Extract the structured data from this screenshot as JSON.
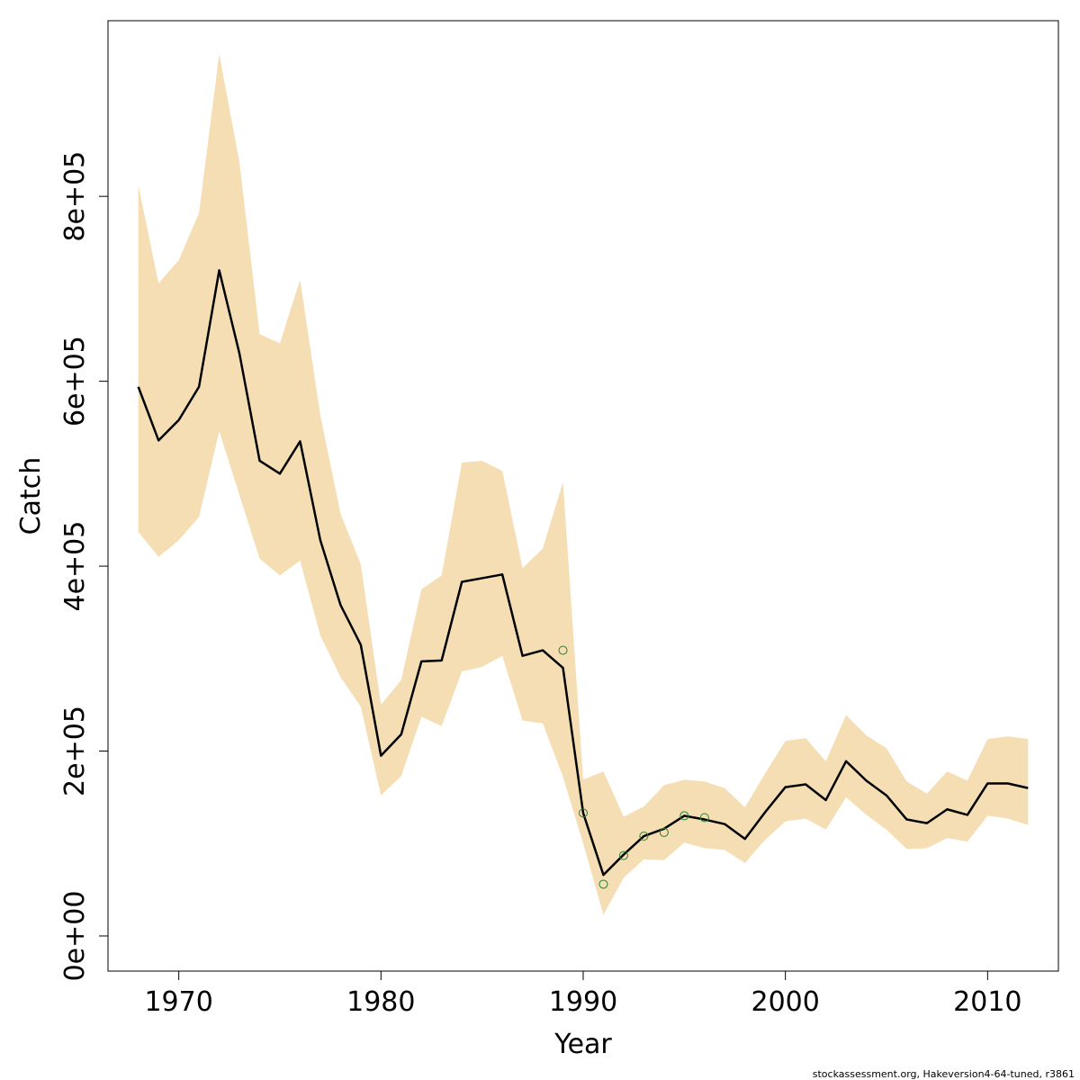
{
  "footer": "stockassessment.org, Hakeversion4-64-tuned, r3861",
  "chart_data": {
    "type": "line",
    "title": "",
    "xlabel": "Year",
    "ylabel": "Catch",
    "xlim": [
      1966.5,
      2013.5
    ],
    "ylim": [
      -38000,
      990000
    ],
    "x_ticks": [
      1970,
      1980,
      1990,
      2000,
      2010
    ],
    "x_tick_labels": [
      "1970",
      "1980",
      "1990",
      "2000",
      "2010"
    ],
    "y_ticks": [
      0,
      200000,
      400000,
      600000,
      800000
    ],
    "y_tick_labels": [
      "0e+00",
      "2e+05",
      "4e+05",
      "6e+05",
      "8e+05"
    ],
    "band_color": "#f5deb3",
    "line_color": "#000000",
    "point_color": "#2e7d32",
    "grid": false,
    "legend": "none",
    "series": [
      {
        "type": "line",
        "x": [
          1968,
          1969,
          1970,
          1971,
          1972,
          1973,
          1974,
          1975,
          1976,
          1977,
          1978,
          1979,
          1980,
          1981,
          1982,
          1983,
          1984,
          1985,
          1986,
          1987,
          1988,
          1989,
          1990,
          1991,
          1992,
          1993,
          1994,
          1995,
          1996,
          1997,
          1998,
          1999,
          2000,
          2001,
          2002,
          2003,
          2004,
          2005,
          2006,
          2007,
          2008,
          2009,
          2010,
          2011,
          2012
        ],
        "values": [
          594000,
          536000,
          558000,
          594000,
          720000,
          630000,
          514000,
          500000,
          535000,
          428000,
          358000,
          315000,
          195000,
          218000,
          297000,
          298000,
          383000,
          387000,
          391000,
          303000,
          309000,
          290000,
          133000,
          66000,
          88000,
          108000,
          116000,
          130000,
          126000,
          121000,
          105000,
          134000,
          161000,
          164000,
          147000,
          189000,
          168000,
          152000,
          126000,
          122000,
          137000,
          131000,
          165000,
          165000,
          160000
        ]
      },
      {
        "type": "band",
        "x": [
          1968,
          1969,
          1970,
          1971,
          1972,
          1973,
          1974,
          1975,
          1976,
          1977,
          1978,
          1979,
          1980,
          1981,
          1982,
          1983,
          1984,
          1985,
          1986,
          1987,
          1988,
          1989,
          1990,
          1991,
          1992,
          1993,
          1994,
          1995,
          1996,
          1997,
          1998,
          1999,
          2000,
          2001,
          2002,
          2003,
          2004,
          2005,
          2006,
          2007,
          2008,
          2009,
          2010,
          2011,
          2012
        ],
        "lower": [
          437000,
          410000,
          428000,
          453000,
          546000,
          477000,
          408000,
          390000,
          406000,
          325000,
          280000,
          248000,
          152000,
          173000,
          237000,
          227000,
          286000,
          291000,
          303000,
          233000,
          230000,
          172000,
          100000,
          23000,
          63000,
          83000,
          82000,
          101000,
          95000,
          93000,
          79000,
          104000,
          124000,
          127000,
          115000,
          150000,
          131000,
          115000,
          94000,
          95000,
          106000,
          102000,
          130000,
          127000,
          120000
        ],
        "upper": [
          812000,
          706000,
          731000,
          782000,
          954000,
          837000,
          651000,
          641000,
          710000,
          563000,
          457000,
          402000,
          250000,
          277000,
          375000,
          390000,
          512000,
          514000,
          503000,
          398000,
          419000,
          491000,
          169000,
          178000,
          129000,
          140000,
          163000,
          169000,
          167000,
          160000,
          139000,
          176000,
          211000,
          214000,
          189000,
          239000,
          217000,
          203000,
          167000,
          154000,
          178000,
          168000,
          213000,
          216000,
          213000
        ]
      },
      {
        "type": "points",
        "x": [
          1989,
          1990,
          1991,
          1992,
          1993,
          1994,
          1995,
          1996
        ],
        "values": [
          309000,
          133000,
          56000,
          87000,
          108000,
          112000,
          130000,
          128000
        ]
      }
    ]
  }
}
